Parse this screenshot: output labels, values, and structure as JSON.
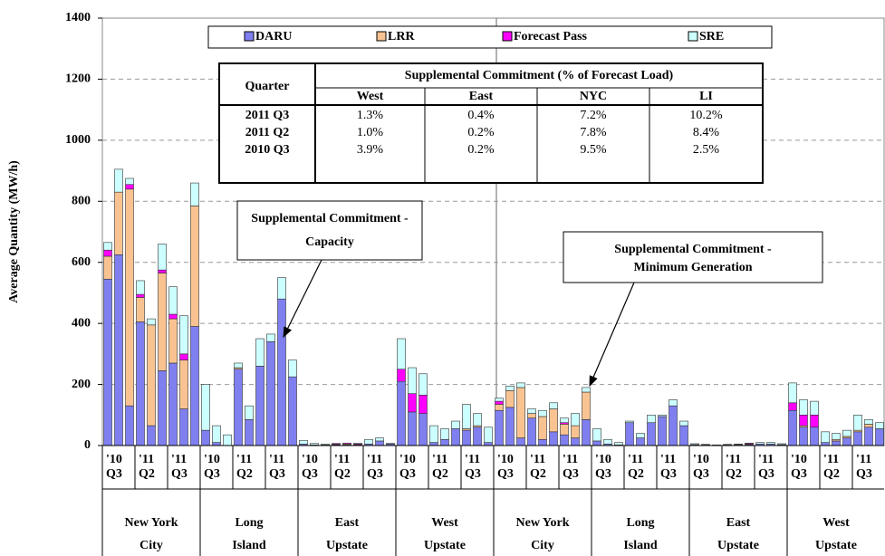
{
  "chart_data": {
    "type": "stacked_bar",
    "y_label": "Average Quantity (MW/h)",
    "ylim": [
      0,
      1400
    ],
    "yticks": [
      0,
      200,
      400,
      600,
      800,
      1000,
      1200,
      1400
    ],
    "grid": true,
    "categories": [
      null,
      null,
      null,
      null,
      null,
      null,
      null,
      null,
      null,
      null,
      null,
      null,
      null,
      null,
      null,
      null,
      null,
      null,
      null,
      null,
      null,
      null,
      null,
      null,
      null,
      null,
      null,
      null,
      null,
      null,
      null,
      null,
      null,
      null,
      null,
      null,
      null,
      null,
      null,
      null,
      null,
      null,
      null,
      null,
      null,
      null,
      null,
      null,
      null,
      null,
      null,
      null,
      null,
      null,
      null,
      null,
      null,
      null,
      null,
      null,
      null,
      null,
      null,
      null,
      null,
      null,
      null,
      null,
      null,
      null,
      null,
      null
    ],
    "periods": [
      [
        "'10",
        "Q3"
      ],
      [
        "'11",
        "Q2"
      ],
      [
        "'11",
        "Q3"
      ]
    ],
    "regions": [
      [
        "New York",
        "City"
      ],
      [
        "Long",
        "Island"
      ],
      [
        "East",
        "Upstate"
      ],
      [
        "West",
        "Upstate"
      ],
      [
        "New York",
        "City"
      ],
      [
        "Long",
        "Island"
      ],
      [
        "East",
        "Upstate"
      ],
      [
        "West",
        "Upstate"
      ]
    ],
    "series": [
      {
        "name": "DARU",
        "color": "#7f7ff0",
        "values": [
          545,
          625,
          130,
          405,
          65,
          245,
          270,
          120,
          390,
          50,
          10,
          0,
          250,
          85,
          260,
          340,
          480,
          225,
          5,
          2,
          2,
          2,
          2,
          2,
          5,
          15,
          5,
          210,
          110,
          105,
          10,
          20,
          55,
          50,
          60,
          10,
          115,
          125,
          25,
          90,
          20,
          45,
          35,
          25,
          85,
          15,
          5,
          2,
          75,
          25,
          75,
          95,
          130,
          65,
          3,
          2,
          1,
          2,
          3,
          3,
          5,
          5,
          3,
          115,
          60,
          60,
          10,
          15,
          25,
          45,
          60,
          55
        ]
      },
      {
        "name": "LRR",
        "color": "#f9c391",
        "values": [
          75,
          205,
          710,
          80,
          330,
          320,
          145,
          160,
          395,
          0,
          0,
          0,
          5,
          0,
          0,
          0,
          0,
          0,
          0,
          0,
          0,
          0,
          3,
          0,
          0,
          0,
          0,
          0,
          0,
          0,
          0,
          0,
          0,
          5,
          5,
          0,
          20,
          55,
          165,
          15,
          75,
          75,
          35,
          40,
          90,
          0,
          0,
          0,
          0,
          0,
          0,
          0,
          0,
          0,
          0,
          0,
          0,
          0,
          0,
          0,
          0,
          0,
          0,
          0,
          5,
          0,
          0,
          5,
          5,
          5,
          10,
          0
        ]
      },
      {
        "name": "Forecast Pass",
        "color": "#ff00ff",
        "values": [
          20,
          0,
          15,
          10,
          0,
          10,
          15,
          20,
          0,
          0,
          0,
          0,
          0,
          0,
          0,
          0,
          0,
          0,
          0,
          0,
          0,
          3,
          3,
          3,
          0,
          0,
          0,
          40,
          60,
          60,
          0,
          0,
          0,
          0,
          0,
          0,
          10,
          0,
          0,
          0,
          0,
          0,
          5,
          0,
          0,
          0,
          0,
          0,
          0,
          0,
          0,
          0,
          0,
          0,
          0,
          0,
          0,
          0,
          0,
          3,
          0,
          0,
          0,
          25,
          35,
          40,
          0,
          0,
          0,
          0,
          0,
          0
        ]
      },
      {
        "name": "SRE",
        "color": "#ccffff",
        "values": [
          25,
          75,
          20,
          45,
          20,
          85,
          90,
          125,
          75,
          150,
          55,
          35,
          15,
          45,
          90,
          25,
          70,
          55,
          12,
          5,
          3,
          2,
          0,
          3,
          15,
          10,
          2,
          100,
          85,
          70,
          55,
          35,
          25,
          80,
          40,
          50,
          10,
          15,
          15,
          15,
          20,
          20,
          15,
          40,
          15,
          40,
          15,
          8,
          5,
          15,
          25,
          5,
          20,
          15,
          3,
          2,
          1,
          2,
          2,
          2,
          5,
          5,
          3,
          65,
          50,
          45,
          35,
          20,
          20,
          50,
          15,
          20
        ]
      }
    ],
    "table": {
      "header": "Quarter",
      "group_header": "Supplemental Commitment (% of Forecast Load)",
      "columns": [
        "West",
        "East",
        "NYC",
        "LI"
      ],
      "rows": [
        [
          "2011 Q3",
          "1.3%",
          "0.4%",
          "7.2%",
          "10.2%"
        ],
        [
          "2011 Q2",
          "1.0%",
          "0.2%",
          "7.8%",
          "8.4%"
        ],
        [
          "2010 Q3",
          "3.9%",
          "0.2%",
          "9.5%",
          "2.5%"
        ]
      ]
    },
    "annotations": [
      [
        "Supplemental Commitment -",
        "Capacity"
      ],
      [
        "Supplemental Commitment -",
        "Minimum Generation"
      ]
    ]
  }
}
